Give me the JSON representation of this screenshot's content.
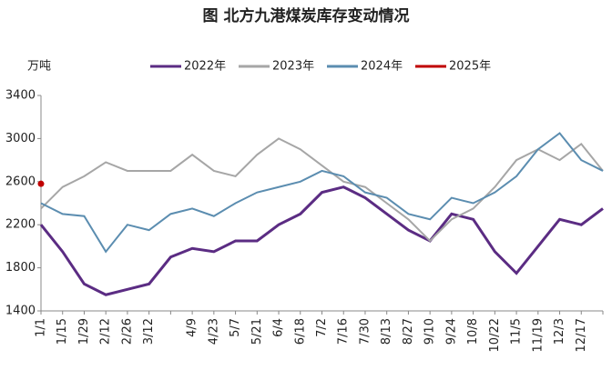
{
  "chart_data": {
    "type": "line",
    "title": "图  北方九港煤炭库存变动情况",
    "y_label": "万吨",
    "categories": [
      "1/1",
      "1/15",
      "1/29",
      "2/12",
      "2/26",
      "3/12",
      null,
      "4/9",
      "4/23",
      "5/7",
      "5/21",
      "6/4",
      "6/18",
      "7/2",
      "7/16",
      "7/30",
      "8/13",
      "8/27",
      "9/10",
      "9/24",
      "10/8",
      "10/22",
      "11/5",
      "11/19",
      "12/3",
      "12/17",
      null
    ],
    "series": [
      {
        "name": "2022年",
        "color": "#5b2c83",
        "values": [
          2200,
          1950,
          1650,
          1550,
          1600,
          1650,
          1900,
          1980,
          1950,
          2050,
          2050,
          2200,
          2300,
          2500,
          2550,
          2450,
          2300,
          2150,
          2050,
          2300,
          2250,
          1950,
          1750,
          2000,
          2250,
          2200,
          2350
        ]
      },
      {
        "name": "2023年",
        "color": "#a6a6a6",
        "values": [
          2350,
          2550,
          2650,
          2780,
          2700,
          2700,
          2700,
          2850,
          2700,
          2650,
          2850,
          3000,
          2900,
          2750,
          2600,
          2550,
          2400,
          2250,
          2050,
          2250,
          2350,
          2550,
          2800,
          2900,
          2800,
          2950,
          2700
        ]
      },
      {
        "name": "2024年",
        "color": "#5b8db0",
        "values": [
          2400,
          2300,
          2280,
          1950,
          2200,
          2150,
          2300,
          2350,
          2280,
          2400,
          2500,
          2550,
          2600,
          2700,
          2650,
          2500,
          2450,
          2300,
          2250,
          2450,
          2400,
          2500,
          2650,
          2900,
          3050,
          2800,
          2700
        ]
      },
      {
        "name": "2025年",
        "color": "#c00000",
        "values": [
          2580,
          null,
          null,
          null,
          null,
          null,
          null,
          null,
          null,
          null,
          null,
          null,
          null,
          null,
          null,
          null,
          null,
          null,
          null,
          null,
          null,
          null,
          null,
          null,
          null,
          null,
          null
        ]
      }
    ],
    "ylim": [
      1400,
      3400
    ],
    "yticks": [
      1400,
      1800,
      2200,
      2600,
      3000,
      3400
    ]
  }
}
